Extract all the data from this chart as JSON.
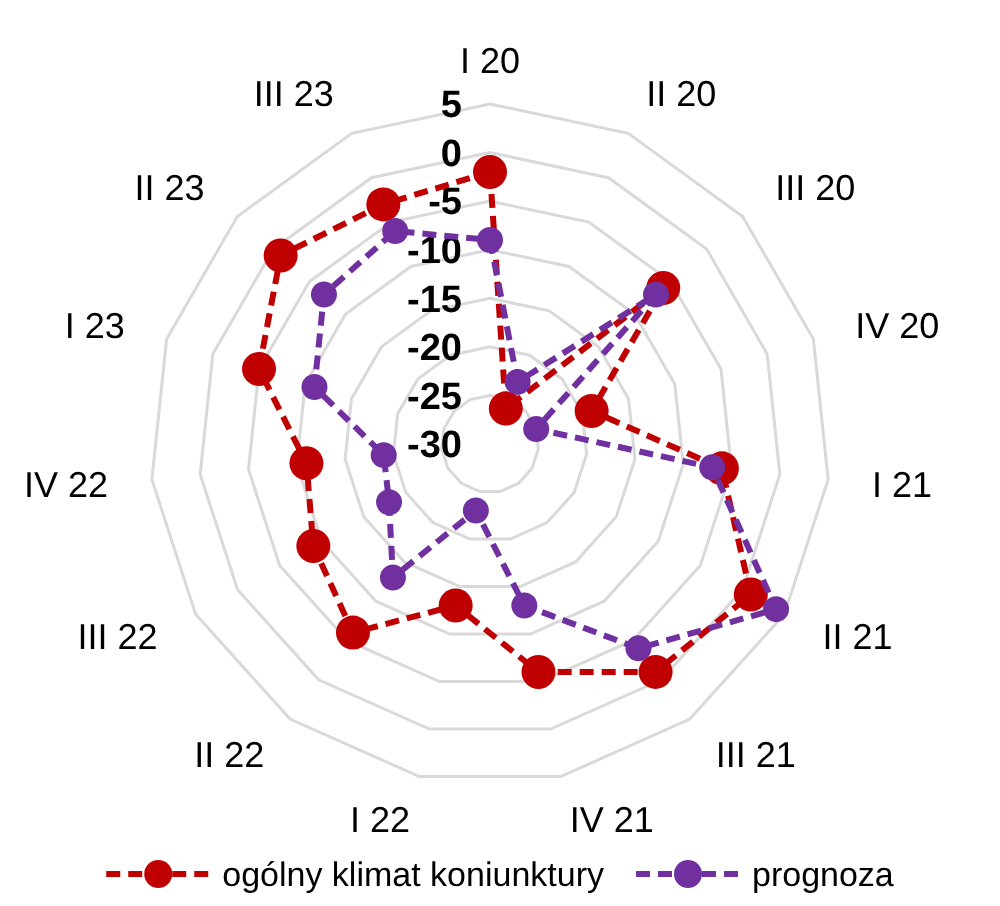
{
  "chart_data": {
    "type": "radar",
    "categories": [
      "I 20",
      "II 20",
      "III 20",
      "IV 20",
      "I 21",
      "II 21",
      "III 21",
      "IV 21",
      "I 22",
      "II 22",
      "III 22",
      "IV 22",
      "I 23",
      "II 23",
      "III 23"
    ],
    "series": [
      {
        "name": "ogólny klimat koniunktury",
        "color": "#c00000",
        "values": [
          -2,
          -26,
          -6,
          -19,
          -6,
          1,
          -1,
          -6,
          -13,
          -6,
          -9,
          -11,
          -5,
          -1,
          -3
        ]
      },
      {
        "name": "prognoza",
        "color": "#7030a0",
        "values": [
          -9,
          -23,
          -7,
          -25,
          -7,
          4,
          -4,
          -13,
          -23,
          -13,
          -18,
          -19,
          -11,
          -7,
          -6
        ]
      }
    ],
    "ylim": [
      -30,
      5
    ],
    "yticks": [
      -30,
      -25,
      -20,
      -15,
      -10,
      -5,
      0,
      5
    ],
    "grid": true,
    "legend": "bottom",
    "marker": "circle",
    "line_style": "dashed"
  }
}
